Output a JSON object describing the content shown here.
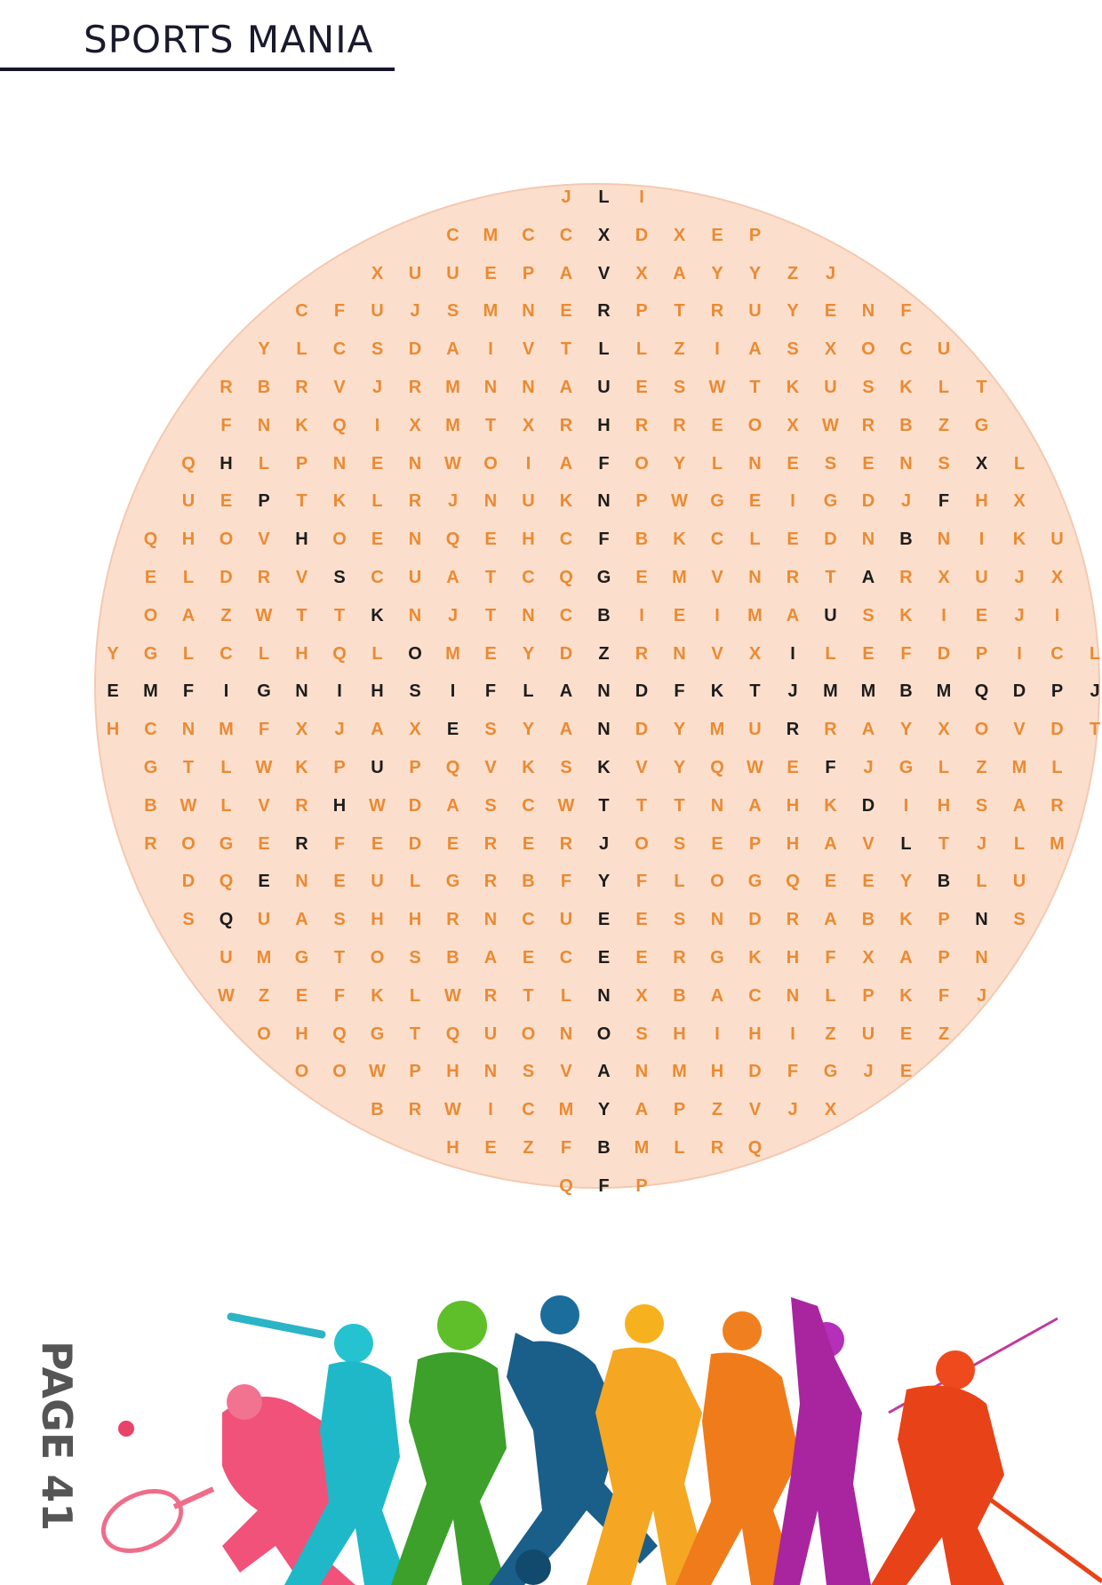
{
  "header": {
    "title": "SPORTS MANIA"
  },
  "footer": {
    "page_label": "PAGE 41"
  },
  "colors": {
    "filler_letter": "#ea8a33",
    "answer_letter": "#1c1c1c",
    "circle_fill": "#fbdfcc",
    "title_rule": "#14142a"
  },
  "puzzle": {
    "rows": [
      {
        "start_col": 12,
        "letters": "JLI",
        "dark": [
          13
        ]
      },
      {
        "start_col": 9,
        "letters": "CMCCXDXEP",
        "dark": [
          13
        ]
      },
      {
        "start_col": 7,
        "letters": "XUUEPAVXAYYZJ",
        "dark": [
          13
        ]
      },
      {
        "start_col": 5,
        "letters": "CFUJSMNERPTRUYENF",
        "dark": [
          13
        ]
      },
      {
        "start_col": 4,
        "letters": "YLCSDAIVTLLZIASXOCU",
        "dark": [
          13
        ]
      },
      {
        "start_col": 3,
        "letters": "RBRVJRMNNAUESWTKUSKLT",
        "dark": [
          13
        ]
      },
      {
        "start_col": 3,
        "letters": "FNKQIXMTXRHRREOXWRBZG",
        "dark": [
          13
        ]
      },
      {
        "start_col": 2,
        "letters": "QHLPNENWOIAFOYLNESENSXL",
        "dark": [
          3,
          13,
          23
        ]
      },
      {
        "start_col": 2,
        "letters": "UEPTKLRJNUKNPWGEIGDJFHX",
        "dark": [
          4,
          13,
          22
        ]
      },
      {
        "start_col": 1,
        "letters": "QHOVHOENQEHCFBKCLEDNBNIKU",
        "dark": [
          5,
          13,
          21
        ]
      },
      {
        "start_col": 1,
        "letters": "ELDRVSCUATCQGEMVNRTARXUJX",
        "dark": [
          6,
          13,
          20
        ]
      },
      {
        "start_col": 1,
        "letters": "OAZWTTKNJTNCBIEIMAUSKIEJI",
        "dark": [
          7,
          13,
          19
        ]
      },
      {
        "start_col": 0,
        "letters": "YGLCLHQLOMEYDZRNVXILEFDPICL",
        "dark": [
          8,
          13,
          18
        ]
      },
      {
        "start_col": 0,
        "letters": "EMFIGNIHSIFLANDFKTJMMBMQDPJ",
        "dark": [
          0,
          1,
          2,
          3,
          4,
          5,
          6,
          7,
          8,
          9,
          10,
          11,
          12,
          13,
          14,
          15,
          16,
          17,
          18,
          19,
          20,
          21,
          22,
          23,
          24,
          25,
          26
        ]
      },
      {
        "start_col": 0,
        "letters": "HCNMFXJAXESYANDYMURRAYXOVDT",
        "dark": [
          9,
          13,
          18
        ]
      },
      {
        "start_col": 1,
        "letters": "GTLWKPUPQVKSKVYQWEFJGLZML",
        "dark": [
          7,
          13,
          19
        ]
      },
      {
        "start_col": 1,
        "letters": "BWLVRHWDASCWTTTNAHKDIHSAR",
        "dark": [
          6,
          13,
          20
        ]
      },
      {
        "start_col": 1,
        "letters": "ROGERFEDERERJOSEPHAVLTJLM",
        "dark": [
          5,
          13,
          21
        ]
      },
      {
        "start_col": 2,
        "letters": "DQENEULGRBFYFLOGQEEYBLU",
        "dark": [
          4,
          13,
          22
        ]
      },
      {
        "start_col": 2,
        "letters": "SQUASHHRNCUEESNDRABKPNS",
        "dark": [
          3,
          13,
          23
        ]
      },
      {
        "start_col": 3,
        "letters": "UMGTOSBAECEERGKHFXAPN",
        "dark": [
          13
        ]
      },
      {
        "start_col": 3,
        "letters": "WZEFKLWRTLNXBACNLPKFJ",
        "dark": [
          13
        ]
      },
      {
        "start_col": 4,
        "letters": "OHQGTQUONOSHIHIZUEZ",
        "dark": [
          13
        ]
      },
      {
        "start_col": 5,
        "letters": "OOWPHNSVANMHDFGJE",
        "dark": [
          13
        ]
      },
      {
        "start_col": 7,
        "letters": "BRWICMYAPZVJX",
        "dark": [
          13
        ]
      },
      {
        "start_col": 9,
        "letters": "HEZFBMLRQ",
        "dark": [
          13
        ]
      },
      {
        "start_col": 12,
        "letters": "QFP",
        "dark": [
          13
        ]
      }
    ]
  },
  "illustration": {
    "icon": "sports-players-silhouettes-icon"
  }
}
